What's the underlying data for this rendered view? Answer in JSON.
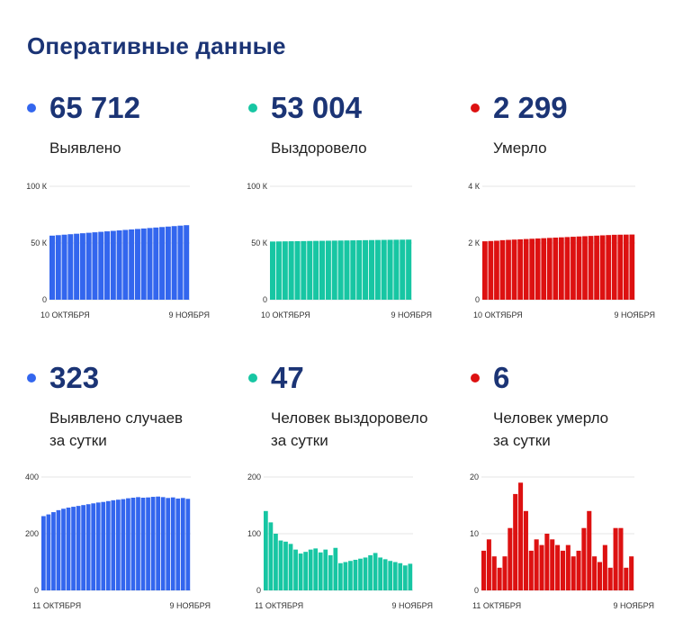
{
  "page": {
    "title": "Оперативные данные"
  },
  "panels": [
    {
      "id": "detected",
      "value": "65 712",
      "label": [
        "Выявлено"
      ],
      "color": "#3366ee",
      "chart_data": {
        "type": "bar",
        "ylim": [
          0,
          100000
        ],
        "yticks": [
          "100 К",
          "50 К",
          "0"
        ],
        "ytick_values": [
          100000,
          50000,
          0
        ],
        "x_start_label": "10 ОКТЯБРЯ",
        "x_end_label": "9 НОЯБРЯ",
        "values": [
          56500,
          56920,
          57340,
          57760,
          58180,
          58600,
          59020,
          59440,
          59860,
          60280,
          60700,
          61120,
          61540,
          61960,
          62380,
          62800,
          63220,
          63640,
          64060,
          64480,
          64900,
          65306,
          65712
        ]
      }
    },
    {
      "id": "recovered",
      "value": "53 004",
      "label": [
        "Выздоровело"
      ],
      "color": "#17c6a3",
      "chart_data": {
        "type": "bar",
        "ylim": [
          0,
          100000
        ],
        "yticks": [
          "100 К",
          "50 К",
          "0"
        ],
        "ytick_values": [
          100000,
          50000,
          0
        ],
        "x_start_label": "10 ОКТЯБРЯ",
        "x_end_label": "9 НОЯБРЯ",
        "values": [
          51300,
          51380,
          51460,
          51540,
          51620,
          51700,
          51780,
          51860,
          51940,
          52020,
          52100,
          52180,
          52260,
          52340,
          52420,
          52500,
          52580,
          52660,
          52740,
          52820,
          52880,
          52940,
          53004
        ]
      }
    },
    {
      "id": "died",
      "value": "2 299",
      "label": [
        "Умерло"
      ],
      "color": "#dd1111",
      "chart_data": {
        "type": "bar",
        "ylim": [
          0,
          4000
        ],
        "yticks": [
          "4 К",
          "2 К",
          "0"
        ],
        "ytick_values": [
          4000,
          2000,
          0
        ],
        "x_start_label": "10 ОКТЯБРЯ",
        "x_end_label": "9 НОЯБРЯ",
        "values": [
          2060,
          2070,
          2080,
          2100,
          2110,
          2120,
          2130,
          2140,
          2150,
          2160,
          2170,
          2180,
          2190,
          2200,
          2210,
          2220,
          2230,
          2240,
          2250,
          2260,
          2270,
          2280,
          2290,
          2293,
          2296,
          2299
        ]
      }
    },
    {
      "id": "detected-daily",
      "value": "323",
      "label": [
        "Выявлено случаев",
        "за сутки"
      ],
      "color": "#3366ee",
      "chart_data": {
        "type": "bar",
        "ylim": [
          0,
          400
        ],
        "yticks": [
          "400",
          "200",
          "0"
        ],
        "ytick_values": [
          400,
          200,
          0
        ],
        "x_start_label": "11 ОКТЯБРЯ",
        "x_end_label": "9 НОЯБРЯ",
        "values": [
          262,
          268,
          276,
          283,
          288,
          292,
          295,
          298,
          301,
          304,
          307,
          310,
          312,
          315,
          318,
          320,
          322,
          325,
          327,
          329,
          327,
          328,
          330,
          331,
          329,
          326,
          328,
          324,
          326,
          323
        ]
      }
    },
    {
      "id": "recovered-daily",
      "value": "47",
      "label": [
        "Человек выздоровело",
        "за сутки"
      ],
      "color": "#17c6a3",
      "chart_data": {
        "type": "bar",
        "ylim": [
          0,
          200
        ],
        "yticks": [
          "200",
          "100",
          "0"
        ],
        "ytick_values": [
          200,
          100,
          0
        ],
        "x_start_label": "11 ОКТЯБРЯ",
        "x_end_label": "9 НОЯБРЯ",
        "values": [
          140,
          120,
          100,
          88,
          86,
          82,
          72,
          65,
          68,
          72,
          74,
          67,
          72,
          62,
          75,
          48,
          50,
          52,
          54,
          56,
          58,
          62,
          66,
          58,
          55,
          52,
          50,
          48,
          44,
          47
        ]
      }
    },
    {
      "id": "died-daily",
      "value": "6",
      "label": [
        "Человек умерло",
        "за сутки"
      ],
      "color": "#dd1111",
      "chart_data": {
        "type": "bar",
        "ylim": [
          0,
          20
        ],
        "yticks": [
          "20",
          "10",
          "0"
        ],
        "ytick_values": [
          20,
          10,
          0
        ],
        "x_start_label": "11 ОКТЯБРЯ",
        "x_end_label": "9 НОЯБРЯ",
        "values": [
          7,
          9,
          6,
          4,
          6,
          11,
          17,
          19,
          14,
          7,
          9,
          8,
          10,
          9,
          8,
          7,
          8,
          6,
          7,
          11,
          14,
          6,
          5,
          8,
          4,
          11,
          11,
          4,
          6
        ]
      }
    }
  ]
}
